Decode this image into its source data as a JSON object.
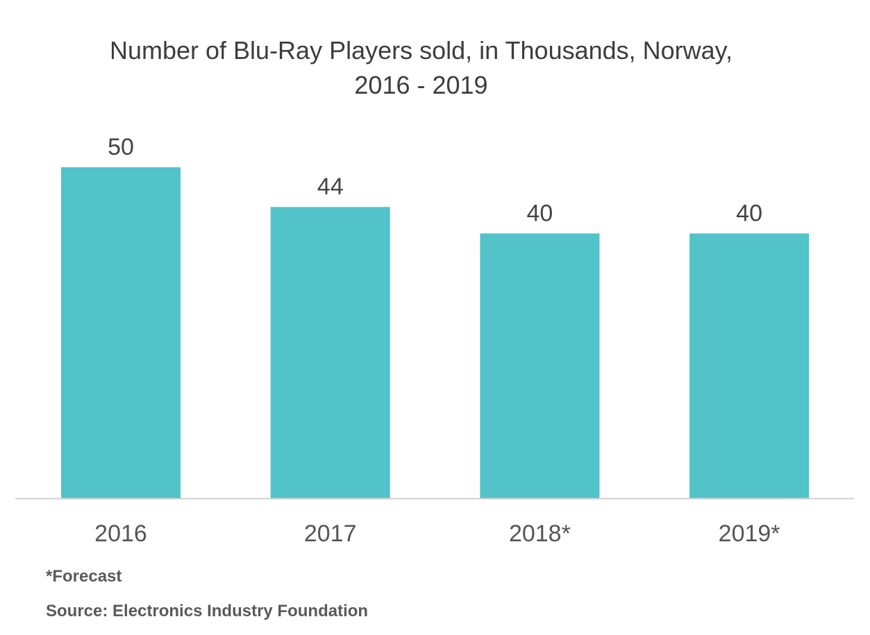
{
  "chart_data": {
    "type": "bar",
    "title_line1": "Number of Blu-Ray Players sold, in Thousands, Norway,",
    "title_line2": "2016 - 2019",
    "categories": [
      "2016",
      "2017",
      "2018*",
      "2019*"
    ],
    "values": [
      50,
      44,
      40,
      40
    ],
    "data_labels": [
      "50",
      "44",
      "40",
      "40"
    ],
    "ylim": [
      0,
      50
    ],
    "grid": false,
    "bar_color": "#52C3C9",
    "xlabel": "",
    "ylabel": ""
  },
  "footnotes": {
    "forecast": "*Forecast",
    "source": "Source: Electronics Industry Foundation"
  }
}
